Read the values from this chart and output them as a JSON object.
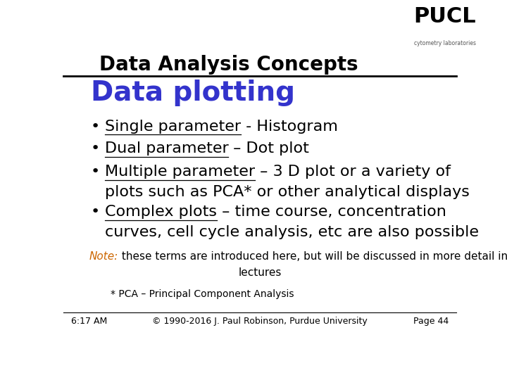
{
  "title": "Data Analysis Concepts",
  "title_fontsize": 20,
  "title_color": "#000000",
  "header_line_color": "#000000",
  "bg_color": "#ffffff",
  "slide_heading": "Data plotting",
  "slide_heading_color": "#3333cc",
  "slide_heading_fontsize": 28,
  "bullets": [
    {
      "underlined": "Single parameter",
      "rest": " - Histogram",
      "continuation": null
    },
    {
      "underlined": "Dual parameter",
      "rest": " – Dot plot",
      "continuation": null
    },
    {
      "underlined": "Multiple parameter",
      "rest": " – 3 D plot or a variety of",
      "continuation": "plots such as PCA* or other analytical displays"
    },
    {
      "underlined": "Complex plots",
      "rest": " – time course, concentration",
      "continuation": "curves, cell cycle analysis, etc are also possible"
    }
  ],
  "bullet_fontsize": 16,
  "bullet_color": "#000000",
  "note_label": "Note:",
  "note_label_color": "#cc6600",
  "note_text": " these terms are introduced here, but will be discussed in more detail in later",
  "note_text2": "lectures",
  "note_fontsize": 11,
  "note_color": "#000000",
  "pca_note": "* PCA – Principal Component Analysis",
  "pca_note_fontsize": 10,
  "pca_note_color": "#000000",
  "footer_left": "6:17 AM",
  "footer_center": "© 1990-2016 J. Paul Robinson, Purdue University",
  "footer_right": "Page 44",
  "footer_fontsize": 9,
  "footer_color": "#000000",
  "logo_text_top": "PUCL",
  "logo_text_bottom": "cytometry laboratories",
  "logo_bg": "#c8bfa8",
  "logo_text_color": "#000000"
}
